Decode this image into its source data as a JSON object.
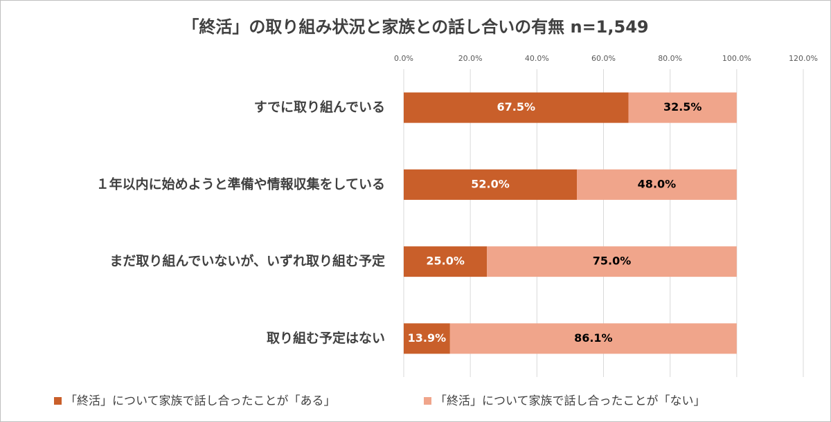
{
  "chart_data": {
    "type": "stacked-barh",
    "title": "「終活」の取り組み状況と家族との話し合いの有無 n=1,549",
    "categories": [
      "すでに取り組んでいる",
      "１年以内に始めようと準備や情報収集をしている",
      "まだ取り組んでいないが、いずれ取り組む予定",
      "取り組む予定はない"
    ],
    "series": [
      {
        "name": "「終活」について家族で話し合ったことが「ある」",
        "color": "#c95f2a",
        "values": [
          67.5,
          52.0,
          25.0,
          13.9
        ],
        "value_labels": [
          "67.5%",
          "52.0%",
          "25.0%",
          "13.9%"
        ]
      },
      {
        "name": "「終活」について家族で話し合ったことが「ない」",
        "color": "#f0a58b",
        "values": [
          32.5,
          48.0,
          75.0,
          86.1
        ],
        "value_labels": [
          "32.5%",
          "48.0%",
          "75.0%",
          "86.1%"
        ]
      }
    ],
    "xlim": [
      0,
      120
    ],
    "xticks": [
      {
        "value": 0,
        "label": "0.0%"
      },
      {
        "value": 20,
        "label": "20.0%"
      },
      {
        "value": 40,
        "label": "40.0%"
      },
      {
        "value": 60,
        "label": "60.0%"
      },
      {
        "value": 80,
        "label": "80.0%"
      },
      {
        "value": 100,
        "label": "100.0%"
      },
      {
        "value": 120,
        "label": "120.0%"
      }
    ],
    "grid": true
  }
}
